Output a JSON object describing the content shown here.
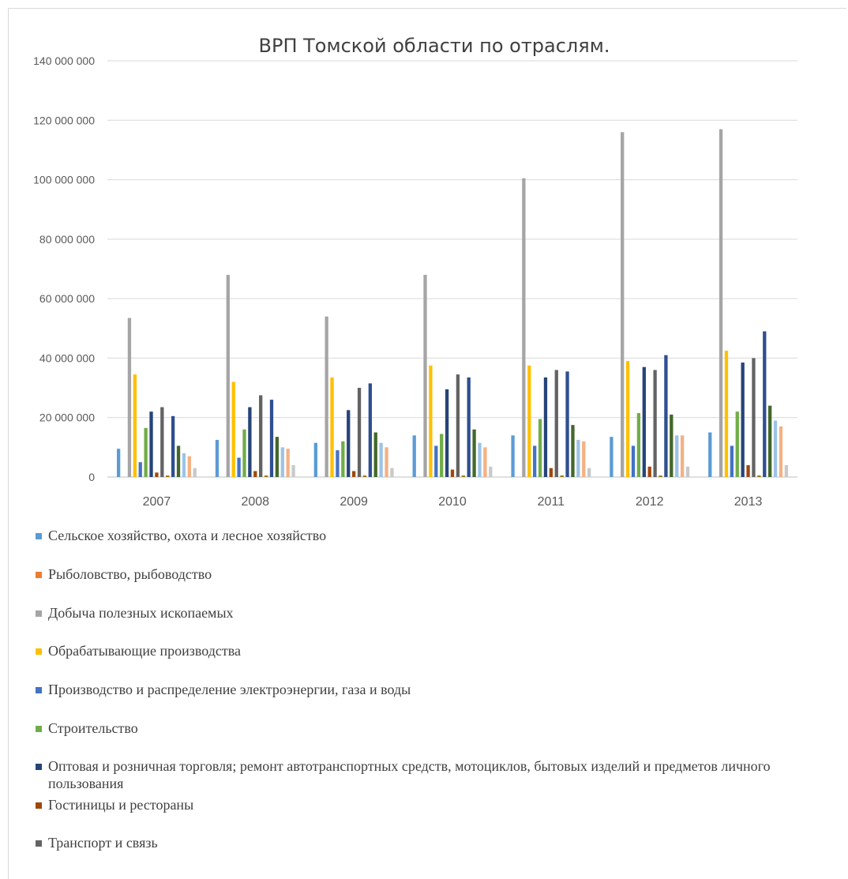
{
  "chart_data": {
    "type": "bar",
    "title": "ВРП Томской области по отраслям.",
    "categories": [
      "2007",
      "2008",
      "2009",
      "2010",
      "2011",
      "2012",
      "2013"
    ],
    "ylim": [
      0,
      140000000
    ],
    "yticks": [
      0,
      20000000,
      40000000,
      60000000,
      80000000,
      100000000,
      120000000,
      140000000
    ],
    "ytick_labels": [
      "0",
      "20 000 000",
      "40 000 000",
      "60 000 000",
      "80 000 000",
      "100 000 000",
      "120 000 000",
      "140 000 000"
    ],
    "grid": true,
    "legend_position": "bottom",
    "series": [
      {
        "name": "Сельское хозяйство, охота и лесное хозяйство",
        "color": "#5b9bd5",
        "values": [
          9500000,
          12500000,
          11500000,
          14000000,
          14000000,
          13500000,
          15000000
        ]
      },
      {
        "name": "Рыболовство, рыбоводство",
        "color": "#ed7d31",
        "values": [
          0,
          0,
          0,
          0,
          0,
          0,
          0
        ]
      },
      {
        "name": "Добыча полезных ископаемых",
        "color": "#a5a5a5",
        "values": [
          53500000,
          68000000,
          54000000,
          68000000,
          100500000,
          116000000,
          117000000
        ]
      },
      {
        "name": "Обрабатывающие производства",
        "color": "#ffc000",
        "values": [
          34500000,
          32000000,
          33500000,
          37500000,
          37500000,
          39000000,
          42500000
        ]
      },
      {
        "name": "Производство и распределение электроэнергии, газа и воды",
        "color": "#4472c4",
        "values": [
          5000000,
          6500000,
          9000000,
          10500000,
          10500000,
          10500000,
          10500000
        ]
      },
      {
        "name": "Строительство",
        "color": "#70ad47",
        "values": [
          16500000,
          16000000,
          12000000,
          14500000,
          19500000,
          21500000,
          22000000
        ]
      },
      {
        "name": "Оптовая и розничная торговля; ремонт автотранспортных средств, мотоциклов, бытовых изделий и предметов личного пользования",
        "color": "#264478",
        "values": [
          22000000,
          23500000,
          22500000,
          29500000,
          33500000,
          37000000,
          38500000
        ]
      },
      {
        "name": "Гостиницы и рестораны",
        "color": "#9e480e",
        "values": [
          1500000,
          2000000,
          2000000,
          2500000,
          3000000,
          3500000,
          4000000
        ]
      },
      {
        "name": "Транспорт и связь",
        "color": "#636363",
        "values": [
          23500000,
          27500000,
          30000000,
          34500000,
          36000000,
          36000000,
          40000000
        ]
      },
      {
        "name": "",
        "color": "#997300",
        "values": [
          500000,
          500000,
          500000,
          500000,
          500000,
          500000,
          500000
        ]
      },
      {
        "name": "",
        "color": "#2f4f8f",
        "values": [
          20500000,
          26000000,
          31500000,
          33500000,
          35500000,
          41000000,
          49000000
        ]
      },
      {
        "name": "",
        "color": "#43682b",
        "values": [
          10500000,
          13500000,
          15000000,
          16000000,
          17500000,
          21000000,
          24000000
        ]
      },
      {
        "name": "",
        "color": "#9dc3e6",
        "values": [
          8000000,
          10000000,
          11500000,
          11500000,
          12500000,
          14000000,
          19000000
        ]
      },
      {
        "name": "",
        "color": "#f4b183",
        "values": [
          7000000,
          9500000,
          10000000,
          10000000,
          12000000,
          14000000,
          17000000
        ]
      },
      {
        "name": "",
        "color": "#c9c9c9",
        "values": [
          3000000,
          4000000,
          3000000,
          3500000,
          3000000,
          3500000,
          4000000
        ]
      }
    ]
  }
}
